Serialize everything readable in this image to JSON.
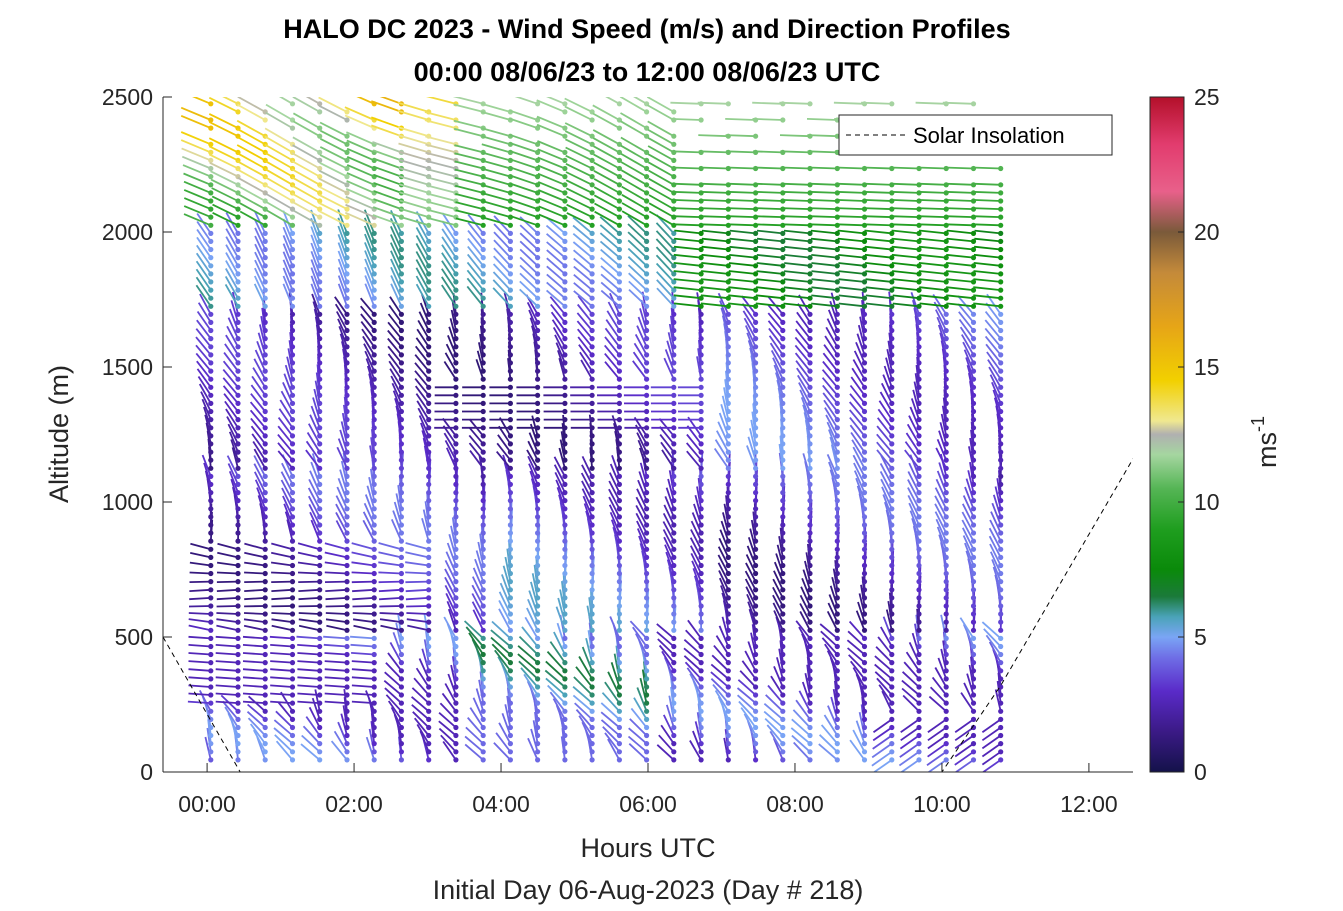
{
  "chart_data": {
    "type": "wind-barb-profile",
    "title": "HALO DC 2023 - Wind Speed (m/s) and Direction Profiles",
    "subtitle": "00:00 08/06/23 to 12:00 08/06/23  UTC",
    "xlabel": "Hours UTC",
    "xlabel2": "Initial Day 06-Aug-2023 (Day # 218)",
    "ylabel": "Altitude (m)",
    "colorbar_label": "ms",
    "colorbar_label_exp": "-1",
    "xlim": [
      -0.6,
      12.6
    ],
    "ylim": [
      0,
      2500
    ],
    "x_ticks": [
      0,
      2,
      4,
      6,
      8,
      10,
      12
    ],
    "x_tick_labels": [
      "00:00",
      "02:00",
      "04:00",
      "06:00",
      "08:00",
      "10:00",
      "12:00"
    ],
    "y_ticks": [
      0,
      500,
      1000,
      1500,
      2000,
      2500
    ],
    "y_tick_labels": [
      "0",
      "500",
      "1000",
      "1500",
      "2000",
      "2500"
    ],
    "colorbar_range": [
      0,
      25
    ],
    "colorbar_ticks": [
      0,
      5,
      10,
      15,
      20,
      25
    ],
    "colorbar_tick_labels": [
      "0",
      "5",
      "10",
      "15",
      "20",
      "25"
    ],
    "legend": {
      "label": "Solar Insolation",
      "style": "dashed",
      "placement": "top-right"
    },
    "profiles": {
      "first_time": 0.05,
      "last_time": 10.8,
      "count": 30,
      "lowest_gate_m": 45,
      "highest_gate_m": 2490,
      "gate_spacing_m": 30
    },
    "solar_insolation": {
      "x": [
        -0.6,
        0.45,
        0.6,
        10.0,
        10.8,
        12.6
      ],
      "y": [
        500,
        0,
        0,
        0,
        320,
        1160
      ]
    }
  }
}
